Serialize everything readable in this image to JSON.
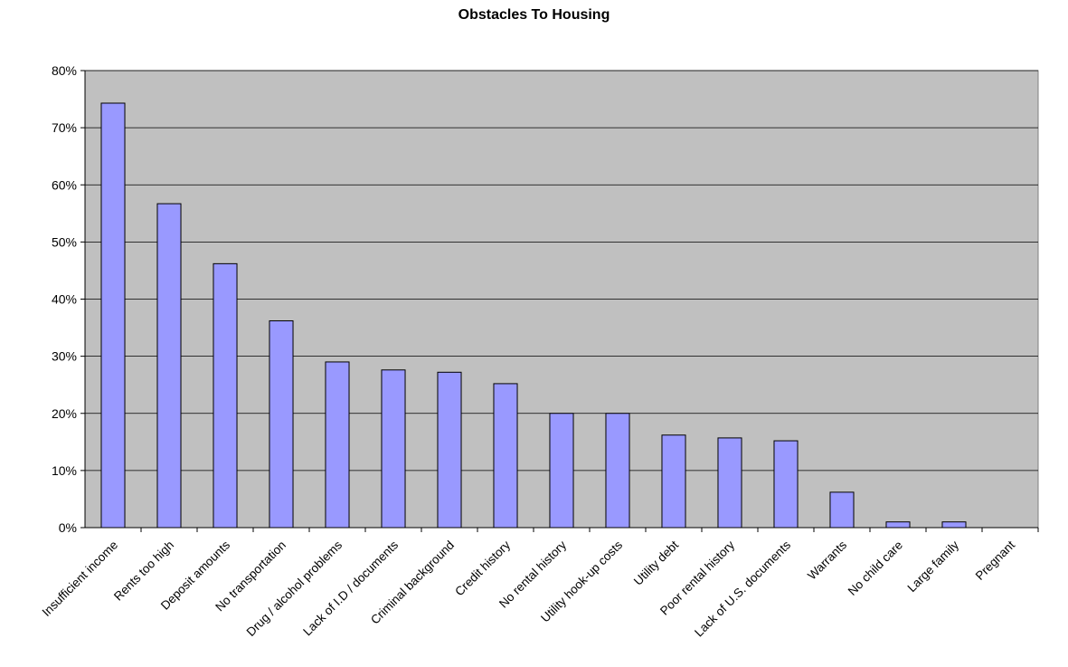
{
  "chart_data": {
    "type": "bar",
    "title": "Obstacles To Housing",
    "xlabel": "",
    "ylabel": "",
    "categories": [
      "Insufficient income",
      "Rents too high",
      "Deposit amounts",
      "No transportation",
      "Drug / alcohol problems",
      "Lack of I.D / documents",
      "Criminal background",
      "Credit history",
      "No rental history",
      "Utility hook-up costs",
      "Utility debt",
      "Poor rental history",
      "Lack of U.S. documents",
      "Warrants",
      "No child care",
      "Large family",
      "Pregnant"
    ],
    "values": [
      74.3,
      56.7,
      46.2,
      36.2,
      29.0,
      27.6,
      27.2,
      25.2,
      20.0,
      20.0,
      16.2,
      15.7,
      15.2,
      6.2,
      1.0,
      1.0,
      0.0
    ],
    "ylim": [
      0,
      80
    ],
    "yticks": [
      0,
      10,
      20,
      30,
      40,
      50,
      60,
      70,
      80
    ],
    "ytick_labels": [
      "0%",
      "10%",
      "20%",
      "30%",
      "40%",
      "50%",
      "60%",
      "70%",
      "80%"
    ],
    "grid": true,
    "legend": "none",
    "colors": {
      "bar_fill": "#9999ff",
      "bar_stroke": "#000000",
      "plot_background": "#c0c0c0",
      "gridline": "#000000"
    }
  }
}
